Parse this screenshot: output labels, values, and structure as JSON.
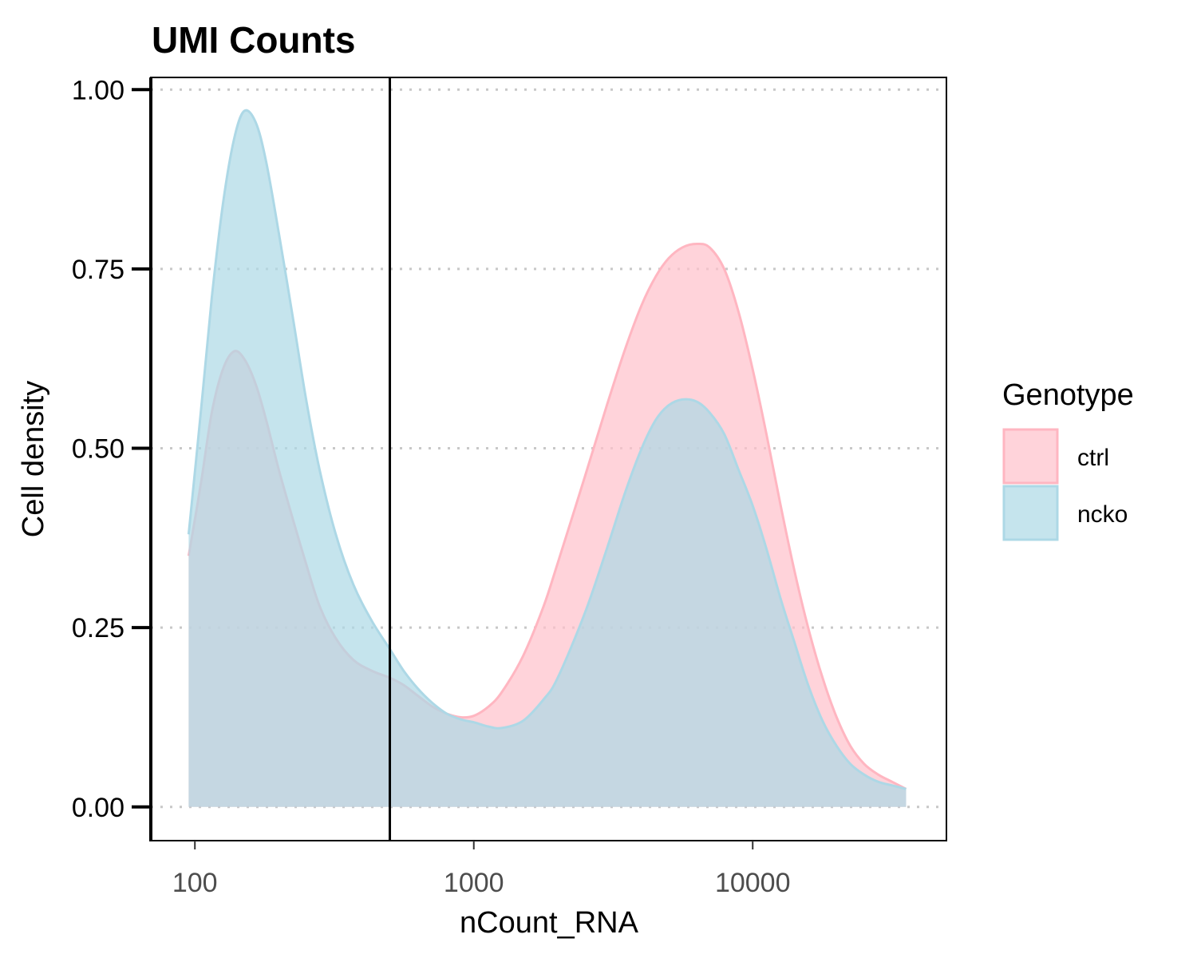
{
  "chart_data": {
    "type": "area",
    "title": "UMI Counts",
    "xlabel": "nCount_RNA",
    "ylabel": "Cell density",
    "x_scale": "log10",
    "xlim": [
      69.5,
      49500
    ],
    "ylim": [
      -0.047,
      1.017
    ],
    "x_ticks": [
      100,
      1000,
      10000
    ],
    "x_tick_labels": [
      "100",
      "1000",
      "10000"
    ],
    "y_ticks": [
      0,
      0.25,
      0.5,
      0.75,
      1.0
    ],
    "y_tick_labels": [
      "0.00",
      "0.25",
      "0.50",
      "0.75",
      "1.00"
    ],
    "grid": "horizontal-dotted",
    "threshold_line_x": 500,
    "legend": {
      "title": "Genotype",
      "position": "right"
    },
    "series": [
      {
        "name": "ctrl",
        "fill": "#ffc0cb",
        "stroke": "#ffb6c1",
        "points": [
          [
            95,
            0.35
          ],
          [
            105,
            0.45
          ],
          [
            115,
            0.55
          ],
          [
            126,
            0.61
          ],
          [
            138,
            0.635
          ],
          [
            150,
            0.625
          ],
          [
            165,
            0.59
          ],
          [
            180,
            0.54
          ],
          [
            200,
            0.47
          ],
          [
            225,
            0.4
          ],
          [
            250,
            0.34
          ],
          [
            280,
            0.28
          ],
          [
            320,
            0.235
          ],
          [
            370,
            0.205
          ],
          [
            430,
            0.19
          ],
          [
            500,
            0.18
          ],
          [
            560,
            0.17
          ],
          [
            630,
            0.155
          ],
          [
            710,
            0.14
          ],
          [
            800,
            0.13
          ],
          [
            900,
            0.125
          ],
          [
            1000,
            0.127
          ],
          [
            1130,
            0.14
          ],
          [
            1260,
            0.16
          ],
          [
            1500,
            0.21
          ],
          [
            1780,
            0.28
          ],
          [
            2000,
            0.34
          ],
          [
            2500,
            0.46
          ],
          [
            3000,
            0.56
          ],
          [
            3500,
            0.64
          ],
          [
            4000,
            0.7
          ],
          [
            4500,
            0.74
          ],
          [
            5000,
            0.765
          ],
          [
            5600,
            0.78
          ],
          [
            6300,
            0.785
          ],
          [
            7000,
            0.78
          ],
          [
            7900,
            0.75
          ],
          [
            8900,
            0.69
          ],
          [
            10000,
            0.61
          ],
          [
            11200,
            0.52
          ],
          [
            12600,
            0.42
          ],
          [
            14100,
            0.33
          ],
          [
            15800,
            0.25
          ],
          [
            17800,
            0.18
          ],
          [
            20000,
            0.125
          ],
          [
            22400,
            0.085
          ],
          [
            25100,
            0.06
          ],
          [
            28200,
            0.045
          ],
          [
            31600,
            0.035
          ],
          [
            35500,
            0.025
          ]
        ]
      },
      {
        "name": "ncko",
        "fill": "#add8e6",
        "stroke": "#add8e6",
        "points": [
          [
            95,
            0.38
          ],
          [
            105,
            0.55
          ],
          [
            115,
            0.71
          ],
          [
            126,
            0.84
          ],
          [
            138,
            0.93
          ],
          [
            150,
            0.97
          ],
          [
            165,
            0.955
          ],
          [
            180,
            0.9
          ],
          [
            200,
            0.8
          ],
          [
            225,
            0.68
          ],
          [
            250,
            0.57
          ],
          [
            280,
            0.47
          ],
          [
            320,
            0.38
          ],
          [
            370,
            0.31
          ],
          [
            430,
            0.26
          ],
          [
            500,
            0.22
          ],
          [
            560,
            0.19
          ],
          [
            630,
            0.165
          ],
          [
            710,
            0.145
          ],
          [
            800,
            0.13
          ],
          [
            900,
            0.122
          ],
          [
            1000,
            0.118
          ],
          [
            1130,
            0.112
          ],
          [
            1260,
            0.11
          ],
          [
            1500,
            0.12
          ],
          [
            1780,
            0.15
          ],
          [
            2000,
            0.18
          ],
          [
            2500,
            0.27
          ],
          [
            3000,
            0.36
          ],
          [
            3500,
            0.44
          ],
          [
            4000,
            0.5
          ],
          [
            4500,
            0.54
          ],
          [
            5000,
            0.56
          ],
          [
            5600,
            0.568
          ],
          [
            6300,
            0.565
          ],
          [
            7000,
            0.55
          ],
          [
            7900,
            0.52
          ],
          [
            8900,
            0.47
          ],
          [
            10000,
            0.42
          ],
          [
            11200,
            0.36
          ],
          [
            12600,
            0.29
          ],
          [
            14100,
            0.23
          ],
          [
            15800,
            0.17
          ],
          [
            17800,
            0.12
          ],
          [
            20000,
            0.085
          ],
          [
            22400,
            0.06
          ],
          [
            25100,
            0.045
          ],
          [
            28200,
            0.035
          ],
          [
            31600,
            0.03
          ],
          [
            35500,
            0.025
          ]
        ]
      }
    ]
  }
}
